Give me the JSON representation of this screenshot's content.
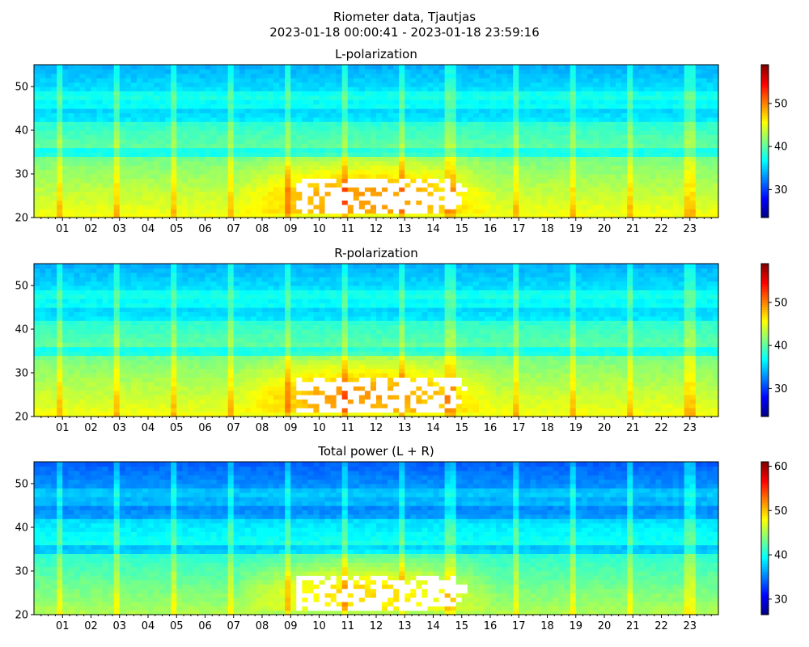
{
  "figure": {
    "title_line1": "Riometer data, Tjautjas",
    "title_line2": "2023-01-18 00:00:41 - 2023-01-18 23:59:16"
  },
  "chart_data": [
    {
      "type": "heatmap",
      "title": "L-polarization",
      "xlabel": "",
      "ylabel": "",
      "x_range_hours": [
        0,
        24
      ],
      "ylim": [
        20,
        55
      ],
      "x_tick_labels": [
        "01",
        "02",
        "03",
        "04",
        "05",
        "06",
        "07",
        "08",
        "09",
        "10",
        "11",
        "12",
        "13",
        "14",
        "15",
        "16",
        "17",
        "18",
        "19",
        "20",
        "21",
        "22",
        "23"
      ],
      "y_ticks": [
        20,
        30,
        40,
        50
      ],
      "colorbar": {
        "range": [
          23.5,
          59
        ],
        "ticks": [
          30,
          40,
          50
        ],
        "colormap": "jet"
      },
      "saturated_color": "#ffffff",
      "vertical_stripe_hours": [
        0.9,
        2.9,
        4.9,
        6.9,
        8.9,
        10.9,
        12.9,
        14.6,
        16.9,
        18.9,
        20.9,
        23.0
      ],
      "event": {
        "start_hour": 7.0,
        "end_hour": 16.3,
        "freq_range": [
          21,
          37
        ],
        "peak_value": 50
      }
    },
    {
      "type": "heatmap",
      "title": "R-polarization",
      "xlabel": "",
      "ylabel": "",
      "x_range_hours": [
        0,
        24
      ],
      "ylim": [
        20,
        55
      ],
      "x_tick_labels": [
        "01",
        "02",
        "03",
        "04",
        "05",
        "06",
        "07",
        "08",
        "09",
        "10",
        "11",
        "12",
        "13",
        "14",
        "15",
        "16",
        "17",
        "18",
        "19",
        "20",
        "21",
        "22",
        "23"
      ],
      "y_ticks": [
        20,
        30,
        40,
        50
      ],
      "colorbar": {
        "range": [
          23.5,
          59
        ],
        "ticks": [
          30,
          40,
          50
        ],
        "colormap": "jet"
      },
      "saturated_color": "#ffffff",
      "vertical_stripe_hours": [
        0.9,
        2.9,
        4.9,
        6.9,
        8.9,
        10.9,
        12.9,
        14.6,
        16.9,
        18.9,
        20.9,
        23.0
      ],
      "event": {
        "start_hour": 7.0,
        "end_hour": 16.3,
        "freq_range": [
          21,
          37
        ],
        "peak_value": 50
      }
    },
    {
      "type": "heatmap",
      "title": "Total power (L + R)",
      "xlabel": "",
      "ylabel": "",
      "x_range_hours": [
        0,
        24
      ],
      "ylim": [
        20,
        55
      ],
      "x_tick_labels": [
        "01",
        "02",
        "03",
        "04",
        "05",
        "06",
        "07",
        "08",
        "09",
        "10",
        "11",
        "12",
        "13",
        "14",
        "15",
        "16",
        "17",
        "18",
        "19",
        "20",
        "21",
        "22",
        "23"
      ],
      "y_ticks": [
        20,
        30,
        40,
        50
      ],
      "colorbar": {
        "range": [
          26.5,
          61
        ],
        "ticks": [
          30,
          40,
          50,
          60
        ],
        "colormap": "jet"
      },
      "saturated_color": "#ffffff",
      "vertical_stripe_hours": [
        0.9,
        2.9,
        4.9,
        6.9,
        8.9,
        10.9,
        12.9,
        14.6,
        16.9,
        18.9,
        20.9,
        23.0
      ],
      "event": {
        "start_hour": 7.0,
        "end_hour": 16.3,
        "freq_range": [
          21,
          37
        ],
        "peak_value": 52
      }
    }
  ]
}
